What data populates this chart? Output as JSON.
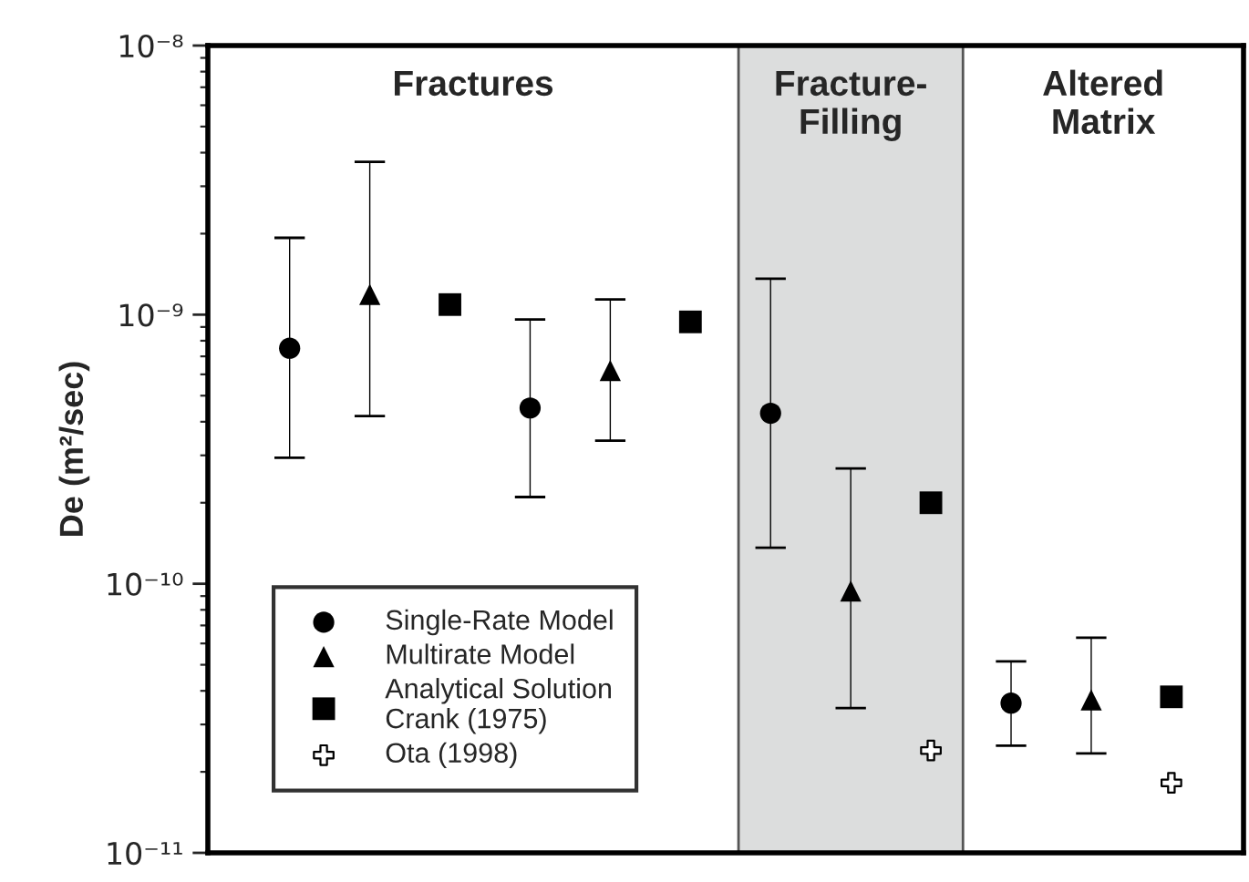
{
  "chart_data": {
    "type": "scatter",
    "ylabel": "De (m²/sec)",
    "log": "y",
    "categories": [
      null,
      null,
      null,
      null,
      null,
      null,
      null,
      null,
      null,
      null,
      null,
      null
    ],
    "ylim": [
      1e-11,
      1e-08
    ],
    "yticks": [
      {
        "value": 1e-11,
        "label": "10⁻¹¹"
      },
      {
        "value": 1e-10,
        "label": "10⁻¹⁰"
      },
      {
        "value": 1e-09,
        "label": "10⁻⁹"
      },
      {
        "value": 1e-08,
        "label": "10⁻⁸"
      }
    ],
    "tick_labels": "y",
    "grid": false,
    "legend": "bottom left",
    "annotations": [
      "Fractures",
      "Fracture-\nFilling",
      "Altered\nMatrix"
    ],
    "series": [
      {
        "name": "Single-Rate Model",
        "color": "#000000",
        "marker": "circle",
        "values": [
          7.5e-10,
          null,
          null,
          4.5e-10,
          null,
          null,
          4.3e-10,
          null,
          null,
          3.6e-11,
          null,
          null
        ],
        "errors": [
          [
            2.94e-10,
            1.93e-09
          ],
          null,
          null,
          [
            2.1e-10,
            9.6e-10
          ],
          null,
          null,
          [
            1.36e-10,
            1.36e-09
          ],
          null,
          null,
          [
            2.5e-11,
            5.15e-11
          ],
          null,
          null
        ]
      },
      {
        "name": "Multirate Model",
        "color": "#000000",
        "marker": "triangle",
        "values": [
          null,
          1.19e-09,
          null,
          null,
          6.2e-10,
          null,
          null,
          9.4e-11,
          null,
          null,
          3.7e-11,
          null
        ],
        "errors": [
          null,
          [
            4.2e-10,
            3.7e-09
          ],
          null,
          null,
          [
            3.4e-10,
            1.14e-09
          ],
          null,
          null,
          [
            3.45e-11,
            2.68e-10
          ],
          null,
          null,
          [
            2.34e-11,
            6.3e-11
          ],
          null
        ]
      },
      {
        "name": "Analytical Solution\nCrank (1975)",
        "color": "#000000",
        "marker": "square",
        "values": [
          null,
          null,
          1.09e-09,
          null,
          null,
          9.4e-10,
          null,
          null,
          2e-10,
          null,
          null,
          3.8e-11
        ]
      },
      {
        "name": "Ota (1998)",
        "color": "#000000",
        "marker": "cross",
        "values": [
          null,
          null,
          null,
          null,
          null,
          null,
          null,
          null,
          2.4e-11,
          null,
          null,
          1.82e-11
        ]
      }
    ]
  }
}
